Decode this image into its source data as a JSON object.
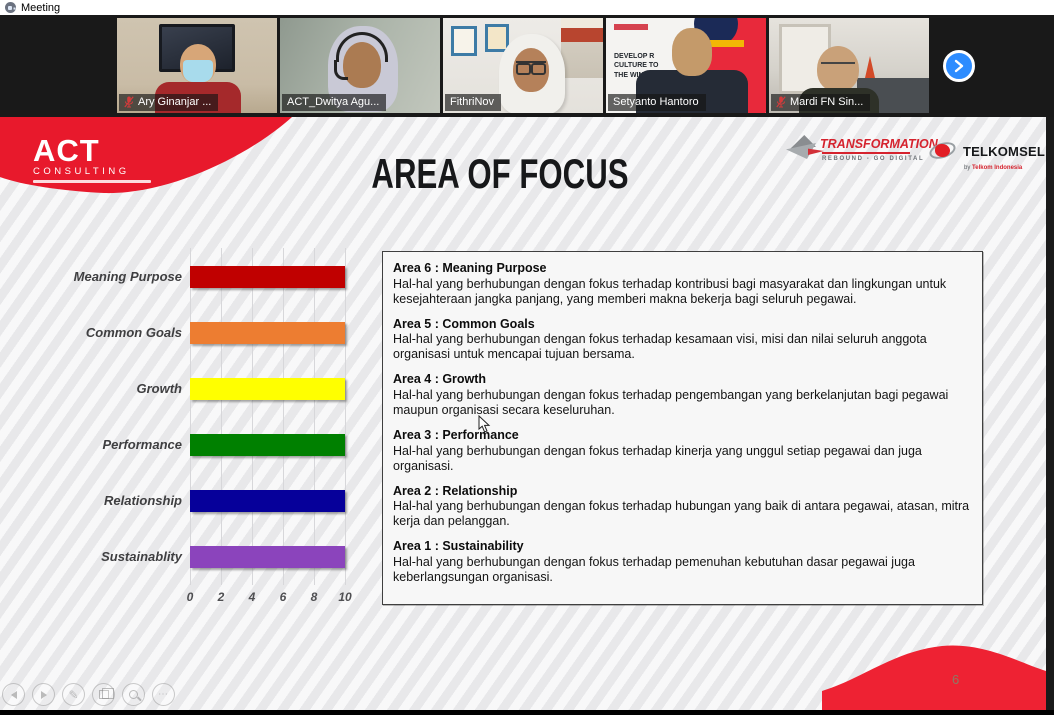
{
  "window": {
    "title": "Meeting"
  },
  "meeting": {
    "participants": [
      {
        "name": "Ary Ginanjar ...",
        "muted": true,
        "active": false
      },
      {
        "name": "ACT_Dwitya Agu...",
        "muted": false,
        "active": true
      },
      {
        "name": "FithriNov",
        "muted": false,
        "active": false
      },
      {
        "name": "Setyanto Hantoro",
        "muted": false,
        "active": false,
        "background_text": [
          "DEVELOP R",
          "CULTURE TO",
          "THE WINN"
        ]
      },
      {
        "name": "Mardi FN Sin...",
        "muted": true,
        "active": false
      }
    ],
    "accent_color": "#2d8cff"
  },
  "slide": {
    "title": "AREA OF FOCUS",
    "page_number": "6",
    "brand_red": "#e8192c",
    "logos": {
      "act": {
        "line1": "ACT",
        "line2": "CONSULTING"
      },
      "transformation": {
        "title": "TRANSFORMATION",
        "subtitle": "REBOUND - GO DIGITAL"
      },
      "telkomsel": {
        "title": "TELKOMSEL",
        "subtitle_prefix": "by ",
        "subtitle_brand": "Telkom Indonesia"
      }
    },
    "areas": [
      {
        "heading": "Area 6 : Meaning Purpose",
        "body": "Hal-hal yang berhubungan dengan fokus terhadap kontribusi bagi masyarakat dan lingkungan untuk kesejahteraan jangka panjang, yang memberi makna bekerja bagi seluruh pegawai."
      },
      {
        "heading": "Area 5 : Common Goals",
        "body": "Hal-hal yang berhubungan dengan fokus terhadap kesamaan visi, misi dan nilai seluruh anggota organisasi untuk mencapai tujuan bersama."
      },
      {
        "heading": "Area 4 : Growth",
        "body": "Hal-hal yang berhubungan dengan fokus terhadap pengembangan yang berkelanjutan bagi pegawai maupun organisasi secara keseluruhan."
      },
      {
        "heading": "Area 3 : Performance",
        "body": "Hal-hal yang berhubungan dengan fokus terhadap kinerja yang unggul setiap pegawai dan juga organisasi."
      },
      {
        "heading": "Area 2 : Relationship",
        "body": "Hal-hal yang berhubungan dengan fokus terhadap hubungan yang baik di antara pegawai, atasan, mitra kerja dan pelanggan."
      },
      {
        "heading": "Area 1 : Sustainability",
        "body": "Hal-hal yang berhubungan dengan fokus terhadap pemenuhan kebutuhan dasar pegawai juga keberlangsungan organisasi."
      }
    ]
  },
  "chart_data": {
    "type": "bar",
    "orientation": "horizontal",
    "categories": [
      "Meaning Purpose",
      "Common Goals",
      "Growth",
      "Performance",
      "Relationship",
      "Sustainablity"
    ],
    "values": [
      10,
      10,
      10,
      10,
      10,
      10
    ],
    "colors": [
      "#c00000",
      "#ed7d31",
      "#ffff00",
      "#008000",
      "#06009a",
      "#8b44bc"
    ],
    "title": "",
    "xlabel": "",
    "ylabel": "",
    "xlim": [
      0,
      10
    ],
    "x_ticks": [
      0,
      2,
      4,
      6,
      8,
      10
    ],
    "grid": true,
    "legend": false
  },
  "slideshow_controls": [
    "previous slide",
    "next slide",
    "pen tools",
    "see all slides",
    "zoom into slide",
    "more options"
  ]
}
